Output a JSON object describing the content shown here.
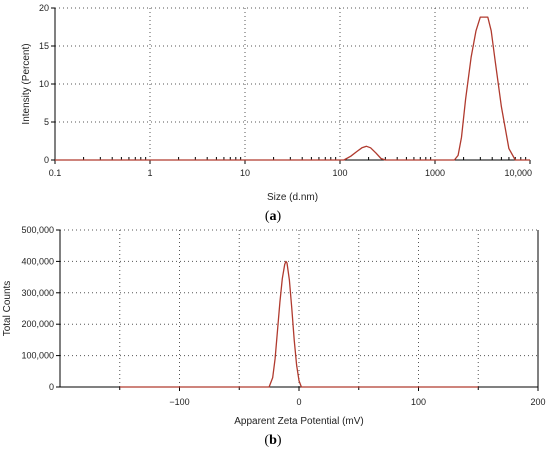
{
  "chart_data": [
    {
      "id": "a",
      "type": "line",
      "caption_letter": "a",
      "xlabel": "Size (d.nm)",
      "ylabel": "Intensity (Percent)",
      "xscale": "log",
      "xlim": [
        0.1,
        10000
      ],
      "ylim": [
        0,
        20
      ],
      "xticks": [
        {
          "v": 0.1,
          "label": "0.1"
        },
        {
          "v": 1,
          "label": "1"
        },
        {
          "v": 10,
          "label": "10"
        },
        {
          "v": 100,
          "label": "100"
        },
        {
          "v": 1000,
          "label": "1000"
        },
        {
          "v": 10000,
          "label": "10,000"
        }
      ],
      "yticks": [
        {
          "v": 0,
          "label": "0"
        },
        {
          "v": 5,
          "label": "5"
        },
        {
          "v": 10,
          "label": "10"
        },
        {
          "v": 15,
          "label": "15"
        },
        {
          "v": 20,
          "label": "20"
        }
      ],
      "grid": true,
      "series": [
        {
          "color": "#b03a2e",
          "x": [
            0.1,
            100,
            110,
            130,
            150,
            170,
            190,
            210,
            240,
            270,
            300,
            1000,
            1600,
            1750,
            1900,
            2100,
            2400,
            2700,
            3000,
            3300,
            3600,
            3900,
            4300,
            5000,
            6000,
            7000,
            10000
          ],
          "y": [
            0,
            0,
            0,
            0.5,
            1.1,
            1.6,
            1.8,
            1.6,
            0.9,
            0.2,
            0,
            0,
            0,
            0.6,
            3,
            8,
            13.5,
            17,
            18.8,
            18.8,
            18.8,
            17,
            13,
            7,
            1.5,
            0,
            0
          ]
        }
      ]
    },
    {
      "id": "b",
      "type": "line",
      "caption_letter": "b",
      "xlabel": "Apparent Zeta Potential (mV)",
      "ylabel": "Total Counts",
      "xscale": "linear",
      "xlim": [
        -200,
        200
      ],
      "ylim": [
        0,
        500000
      ],
      "xticks": [
        {
          "v": -100,
          "label": "−100"
        },
        {
          "v": 0,
          "label": "0"
        },
        {
          "v": 100,
          "label": "100"
        },
        {
          "v": 200,
          "label": "200"
        }
      ],
      "xgrid": [
        -150,
        -100,
        -50,
        0,
        50,
        100,
        150
      ],
      "yticks": [
        {
          "v": 0,
          "label": "0"
        },
        {
          "v": 100000,
          "label": "100,000"
        },
        {
          "v": 200000,
          "label": "200,000"
        },
        {
          "v": 300000,
          "label": "300,000"
        },
        {
          "v": 400000,
          "label": "400,000"
        },
        {
          "v": 500000,
          "label": "500,000"
        }
      ],
      "grid": true,
      "series": [
        {
          "color": "#b03a2e",
          "x": [
            -150,
            -25,
            -22,
            -20,
            -18,
            -16,
            -14,
            -12,
            -11,
            -10,
            -8,
            -6,
            -4,
            -2,
            0,
            2,
            150
          ],
          "y": [
            0,
            0,
            30000,
            90000,
            180000,
            270000,
            345000,
            390000,
            400000,
            395000,
            340000,
            250000,
            150000,
            70000,
            20000,
            0,
            0
          ]
        }
      ]
    }
  ]
}
